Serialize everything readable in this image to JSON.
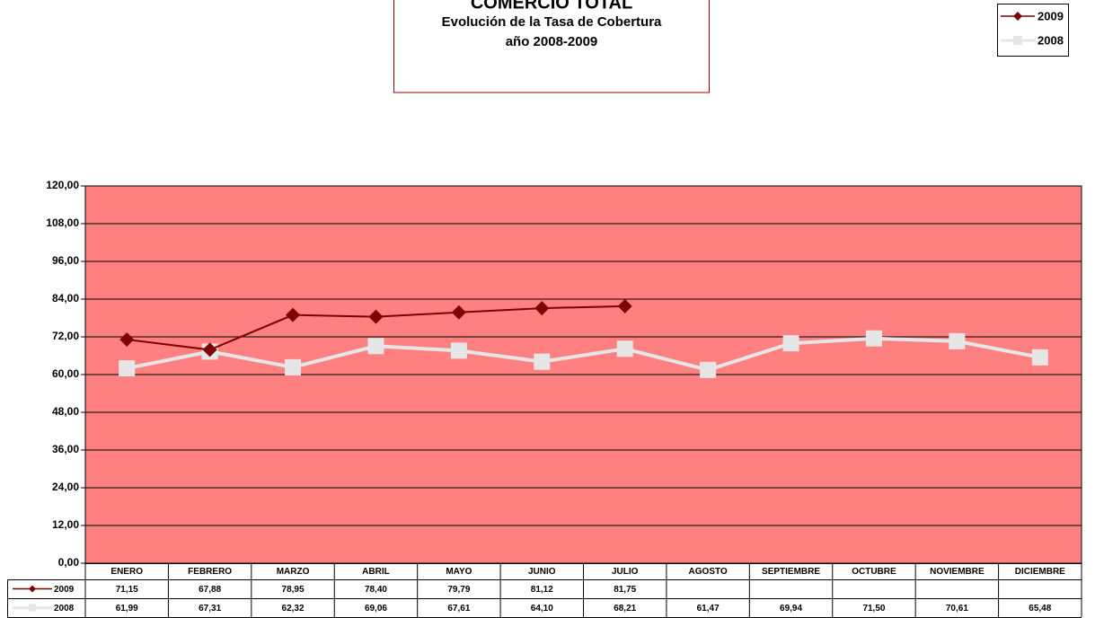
{
  "chart_data": {
    "type": "line",
    "title": "COMERCIO TOTAL",
    "subtitle": "Evolución de la Tasa de Cobertura",
    "subtitle2": "año 2008-2009",
    "categories": [
      "ENERO",
      "FEBRERO",
      "MARZO",
      "ABRIL",
      "MAYO",
      "JUNIO",
      "JULIO",
      "AGOSTO",
      "SEPTIEMBRE",
      "OCTUBRE",
      "NOVIEMBRE",
      "DICIEMBRE"
    ],
    "series": [
      {
        "name": "2009",
        "color": "#800000",
        "marker": "diamond",
        "values": [
          71.15,
          67.88,
          78.95,
          78.4,
          79.79,
          81.12,
          81.75,
          null,
          null,
          null,
          null,
          null
        ],
        "value_labels": [
          "71,15",
          "67,88",
          "78,95",
          "78,40",
          "79,79",
          "81,12",
          "81,75",
          null,
          null,
          null,
          null,
          null
        ]
      },
      {
        "name": "2008",
        "color": "#e6e6e6",
        "marker": "square",
        "values": [
          61.99,
          67.31,
          62.32,
          69.06,
          67.61,
          64.1,
          68.21,
          61.47,
          69.94,
          71.5,
          70.61,
          65.48
        ],
        "value_labels": [
          "61,99",
          "67,31",
          "62,32",
          "69,06",
          "67,61",
          "64,10",
          "68,21",
          "61,47",
          "69,94",
          "71,50",
          "70,61",
          "65,48"
        ]
      }
    ],
    "ylim": [
      0,
      120
    ],
    "yticks": [
      {
        "value": 0,
        "label": "0,00"
      },
      {
        "value": 12,
        "label": "12,00"
      },
      {
        "value": 24,
        "label": "24,00"
      },
      {
        "value": 36,
        "label": "36,00"
      },
      {
        "value": 48,
        "label": "48,00"
      },
      {
        "value": 60,
        "label": "60,00"
      },
      {
        "value": 72,
        "label": "72,00"
      },
      {
        "value": 84,
        "label": "84,00"
      },
      {
        "value": 96,
        "label": "96,00"
      },
      {
        "value": 108,
        "label": "108,00"
      },
      {
        "value": 120,
        "label": "120,00"
      }
    ],
    "grid": true,
    "plot_background": "#ff8080",
    "legend": "top-right"
  }
}
